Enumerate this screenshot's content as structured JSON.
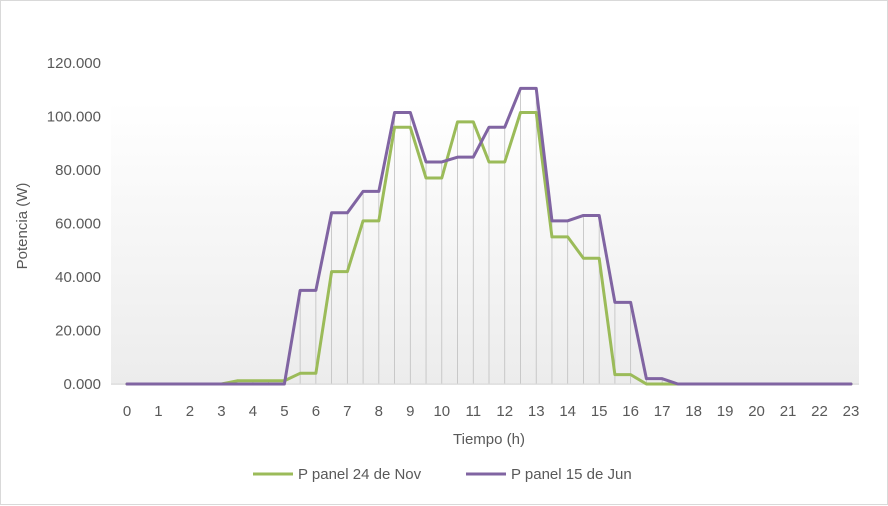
{
  "chart_data": {
    "type": "line",
    "title": "",
    "xlabel": "Tiempo (h)",
    "ylabel": "Potencia (W)",
    "ylim": [
      0,
      120000
    ],
    "y_ticks": [
      0,
      20000,
      40000,
      60000,
      80000,
      100000,
      120000
    ],
    "y_tick_labels": [
      "0.000",
      "20.000",
      "40.000",
      "60.000",
      "80.000",
      "100.000",
      "120.000"
    ],
    "x_ticks": [
      0,
      1,
      2,
      3,
      4,
      5,
      6,
      7,
      8,
      9,
      10,
      11,
      12,
      13,
      14,
      15,
      16,
      17,
      18,
      19,
      20,
      21,
      22,
      23
    ],
    "x_tick_labels": [
      "0",
      "1",
      "2",
      "3",
      "4",
      "5",
      "6",
      "7",
      "8",
      "9",
      "10",
      "11",
      "12",
      "13",
      "14",
      "15",
      "16",
      "17",
      "18",
      "19",
      "20",
      "21",
      "22",
      "23"
    ],
    "x": [
      0,
      0.5,
      1,
      1.5,
      2,
      2.5,
      3,
      3.5,
      4,
      4.5,
      5,
      5.5,
      6,
      6.5,
      7,
      7.5,
      8,
      8.5,
      9,
      9.5,
      10,
      10.5,
      11,
      11.5,
      12,
      12.5,
      13,
      13.5,
      14,
      14.5,
      15,
      15.5,
      16,
      16.5,
      17,
      17.5,
      18,
      18.5,
      19,
      19.5,
      20,
      20.5,
      21,
      21.5,
      22,
      22.5,
      23
    ],
    "series": [
      {
        "name": "P panel 24 de Nov",
        "color": "#9bbb59",
        "values": [
          0,
          0,
          0,
          0,
          0,
          0,
          0,
          1200,
          1200,
          1200,
          1200,
          4000,
          4000,
          42000,
          42000,
          61000,
          61000,
          96000,
          96000,
          77000,
          77000,
          98000,
          98000,
          83000,
          83000,
          101500,
          101500,
          55000,
          55000,
          47000,
          47000,
          3500,
          3500,
          0,
          0,
          0,
          0,
          0,
          0,
          0,
          0,
          0,
          0,
          0,
          0,
          0,
          0
        ]
      },
      {
        "name": "P panel 15 de Jun",
        "color": "#8064a2",
        "values": [
          0,
          0,
          0,
          0,
          0,
          0,
          0,
          0,
          0,
          0,
          0,
          35000,
          35000,
          64000,
          64000,
          72000,
          72000,
          101500,
          101500,
          83000,
          83000,
          84800,
          84800,
          96000,
          96000,
          110500,
          110500,
          61000,
          61000,
          63000,
          63000,
          30500,
          30500,
          2000,
          2000,
          0,
          0,
          0,
          0,
          0,
          0,
          0,
          0,
          0,
          0,
          0,
          0
        ]
      }
    ],
    "grid": false,
    "legend_position": "bottom"
  }
}
